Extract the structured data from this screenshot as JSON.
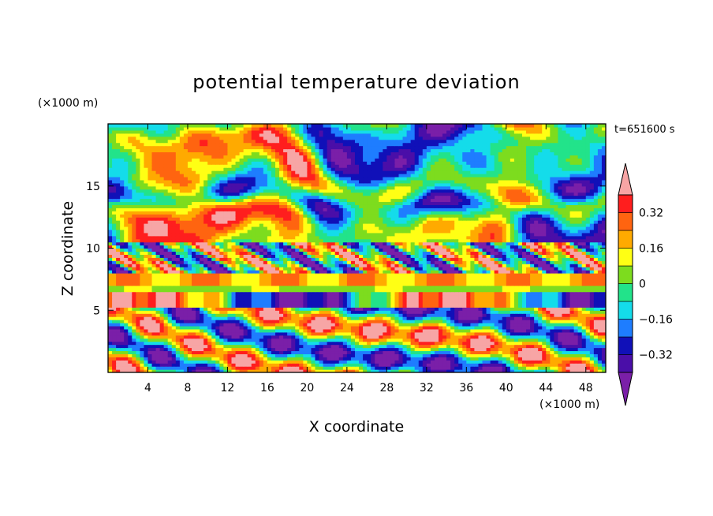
{
  "chart_data": {
    "type": "heatmap",
    "title": "potential temperature deviation",
    "xlabel": "X coordinate",
    "ylabel": "Z coordinate",
    "x_units": "(×1000 m)",
    "y_units": "(×1000 m)",
    "time_label": "t=651600 s",
    "xlim": [
      0,
      50
    ],
    "ylim": [
      0,
      20
    ],
    "x_ticks": [
      4,
      8,
      12,
      16,
      20,
      24,
      28,
      32,
      36,
      40,
      44,
      48
    ],
    "y_ticks": [
      5,
      10,
      15
    ],
    "colorbar": {
      "levels": [
        -0.4,
        -0.32,
        -0.24,
        -0.16,
        -0.08,
        0,
        0.08,
        0.16,
        0.24,
        0.32,
        0.4
      ],
      "tick_values": [
        -0.32,
        -0.16,
        0,
        0.16,
        0.32
      ],
      "tick_labels": [
        "−0.32",
        "−0.16",
        "0",
        "0.16",
        "0.32"
      ],
      "colors": [
        "#7a1fa8",
        "#4a0ea8",
        "#1010b8",
        "#1e7dff",
        "#14dcea",
        "#22e38a",
        "#7ddc1e",
        "#ffff14",
        "#ffaa00",
        "#ff6410",
        "#ff1e1e",
        "#f7a5a5"
      ],
      "extend": "both"
    },
    "regions_description": "layered turbulence: upper purple/pink patches, 6-8 km banded layer, lower wave-like structures"
  }
}
